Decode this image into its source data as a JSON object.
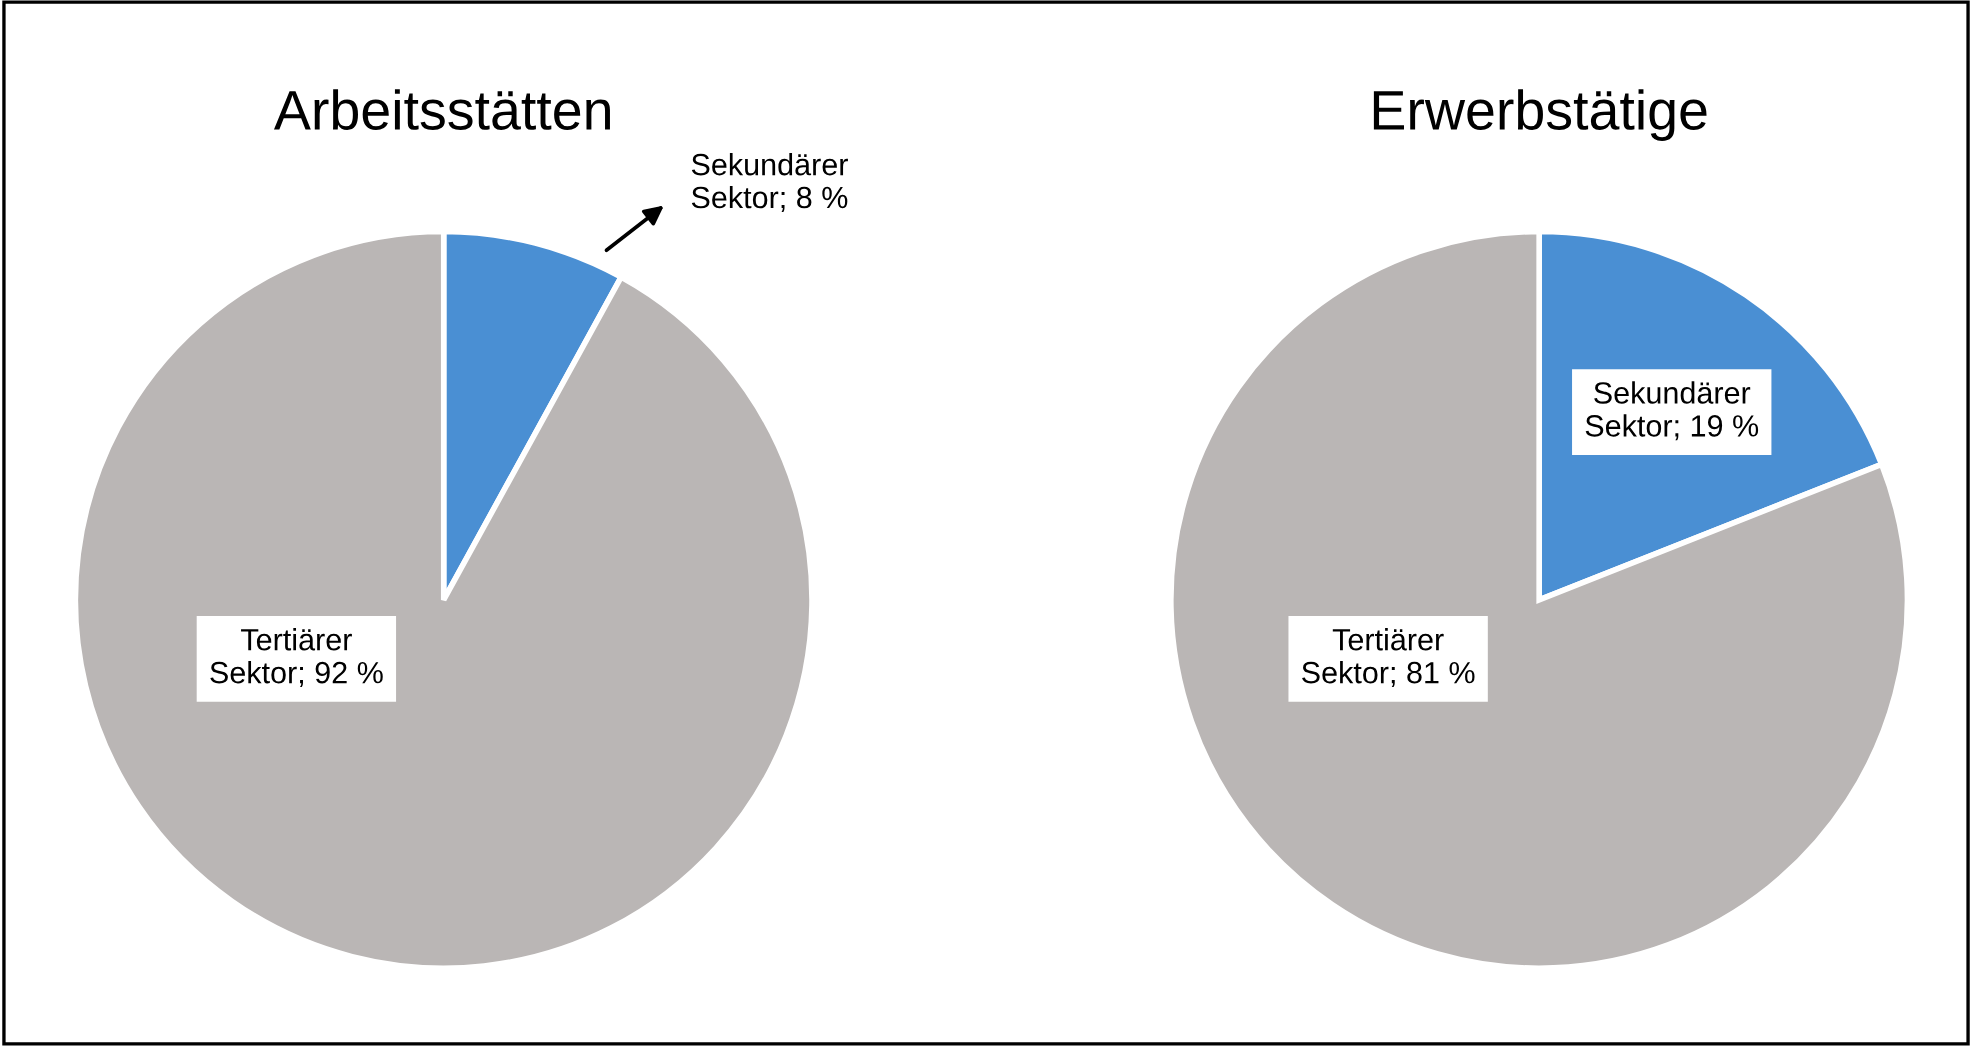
{
  "chart_data": [
    {
      "type": "pie",
      "title": "Arbeitsstätten",
      "categories": [
        "Sekundärer Sektor",
        "Tertiärer Sektor"
      ],
      "values": [
        8,
        92
      ],
      "colors": [
        "#4a8fd3",
        "#bab6b5"
      ],
      "value_labels": [
        "8 %",
        "92 %"
      ]
    },
    {
      "type": "pie",
      "title": "Erwerbstätige",
      "categories": [
        "Sekundärer Sektor",
        "Tertiärer Sektor"
      ],
      "values": [
        19,
        81
      ],
      "colors": [
        "#4a8fd3",
        "#bab6b5"
      ],
      "value_labels": [
        "19 %",
        "81 %"
      ]
    }
  ]
}
